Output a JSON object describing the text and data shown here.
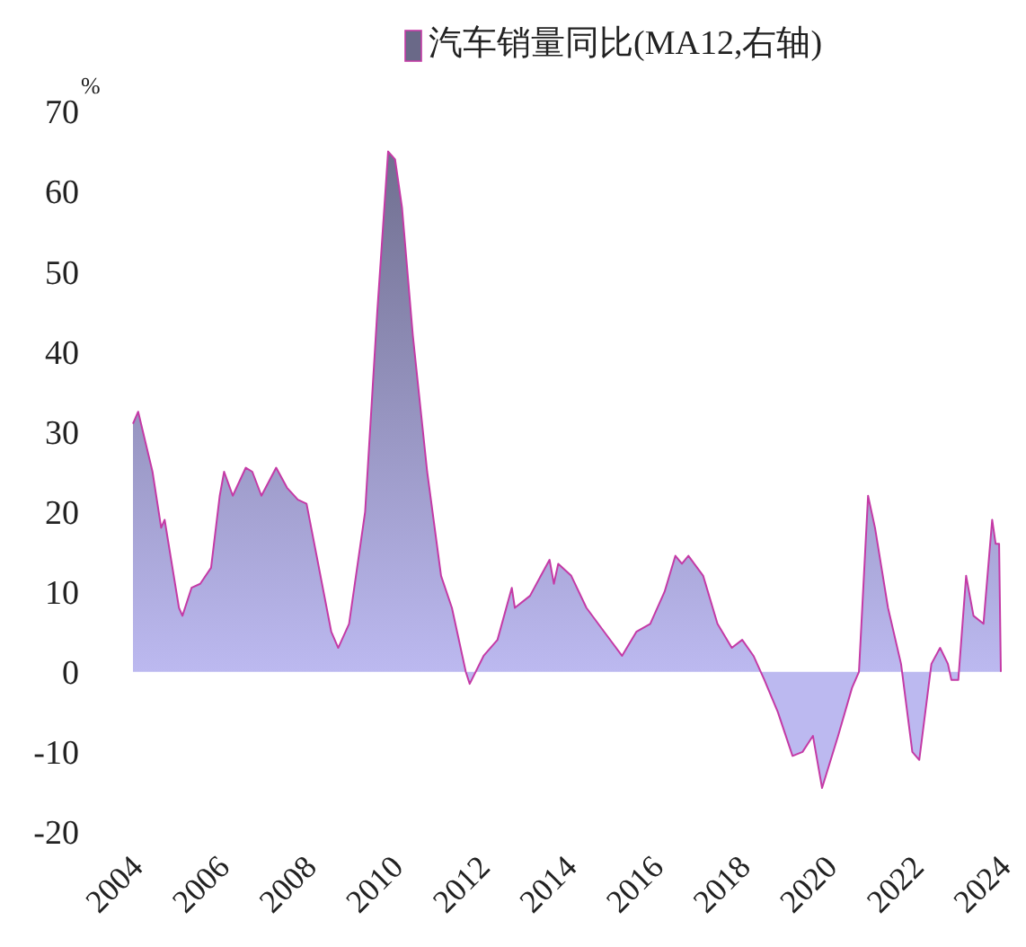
{
  "chart_data": {
    "type": "area",
    "ylabel": "%",
    "legend": "top",
    "grid": false,
    "x": [
      2004.0,
      2004.12,
      2004.45,
      2004.65,
      2004.73,
      2005.06,
      2005.14,
      2005.35,
      2005.55,
      2005.8,
      2006.0,
      2006.1,
      2006.3,
      2006.6,
      2006.75,
      2006.96,
      2007.3,
      2007.55,
      2007.8,
      2008.0,
      2008.25,
      2008.57,
      2008.73,
      2008.98,
      2009.35,
      2009.63,
      2009.88,
      2010.04,
      2010.2,
      2010.45,
      2010.78,
      2011.1,
      2011.35,
      2011.67,
      2011.76,
      2012.08,
      2012.4,
      2012.73,
      2012.8,
      2013.15,
      2013.4,
      2013.6,
      2013.7,
      2013.8,
      2014.1,
      2014.45,
      2014.86,
      2015.27,
      2015.6,
      2015.92,
      2016.25,
      2016.5,
      2016.65,
      2016.8,
      2017.14,
      2017.47,
      2017.8,
      2018.04,
      2018.3,
      2018.55,
      2018.86,
      2019.2,
      2019.43,
      2019.67,
      2019.88,
      2020.25,
      2020.57,
      2020.73,
      2020.94,
      2021.1,
      2021.4,
      2021.7,
      2021.96,
      2022.12,
      2022.4,
      2022.6,
      2022.78,
      2022.86,
      2023.02,
      2023.2,
      2023.37,
      2023.6,
      2023.8,
      2023.88,
      2023.96,
      2024.0
    ],
    "series": [
      {
        "name": "汽车销量同比(MA12,右轴)",
        "color": "#bcb9f0",
        "values": [
          31,
          32.5,
          25,
          18,
          19,
          8,
          7,
          10.5,
          11,
          13,
          22,
          25,
          22,
          25.5,
          25,
          22,
          25.5,
          23,
          21.5,
          21,
          14,
          5,
          3,
          6,
          20,
          45,
          65,
          64,
          58,
          42,
          25,
          12,
          8,
          0,
          -1.5,
          2,
          4,
          10.5,
          8,
          9.5,
          12,
          14,
          11,
          13.5,
          12,
          8,
          5,
          2,
          5,
          6,
          10,
          14.5,
          13.5,
          14.5,
          12,
          6,
          3,
          4,
          2,
          -1,
          -5,
          -10.5,
          -10,
          -8,
          -14.5,
          -8,
          -2,
          0,
          22,
          18,
          8,
          1,
          -10,
          -11,
          1,
          3,
          1,
          -1,
          -1,
          12,
          7,
          6,
          19,
          16,
          16,
          0
        ]
      }
    ],
    "xlim": [
      2004,
      2024
    ],
    "xticks": [
      2004,
      2006,
      2008,
      2010,
      2012,
      2014,
      2016,
      2018,
      2020,
      2022,
      2024
    ],
    "ylim": [
      -20,
      70
    ],
    "yticks": [
      -20,
      -10,
      0,
      10,
      20,
      30,
      40,
      50,
      60,
      70
    ]
  }
}
